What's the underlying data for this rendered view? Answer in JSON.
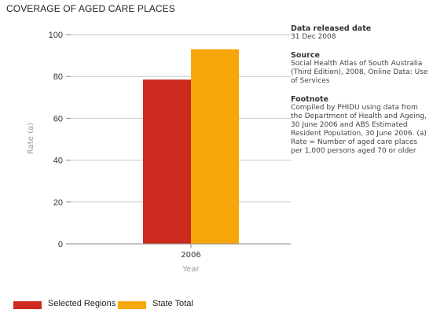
{
  "chart_data": {
    "type": "bar",
    "title": "COVERAGE OF AGED CARE PLACES",
    "xlabel": "Year",
    "ylabel": "Rate (a)",
    "categories": [
      "2006"
    ],
    "series": [
      {
        "name": "Selected Regions",
        "values": [
          78.5
        ],
        "color": "#cc2a1e"
      },
      {
        "name": "State Total",
        "values": [
          93.0
        ],
        "color": "#f7a70a"
      }
    ],
    "ylim": [
      0,
      100
    ],
    "yticks": [
      0,
      20,
      40,
      60,
      80,
      100
    ],
    "grid": true,
    "legend": "bottom-left"
  },
  "sidebar": {
    "data_released": {
      "heading": "Data released date",
      "text": "31 Dec 2008"
    },
    "source": {
      "heading": "Source",
      "text": "Social Health Atlas of South Australia (Third Edition), 2008, Online Data: Use of Services"
    },
    "footnote": {
      "heading": "Footnote",
      "text": "Compiled by PHIDU using data from the Department of Health and Ageing, 30 June 2006 and ABS Estimated Resident Population, 30 June 2006. (a) Rate = Number of aged care places per 1,000 persons aged 70 or older"
    }
  },
  "colors": {
    "grid": "#c8c8c8",
    "axis": "#888888"
  }
}
